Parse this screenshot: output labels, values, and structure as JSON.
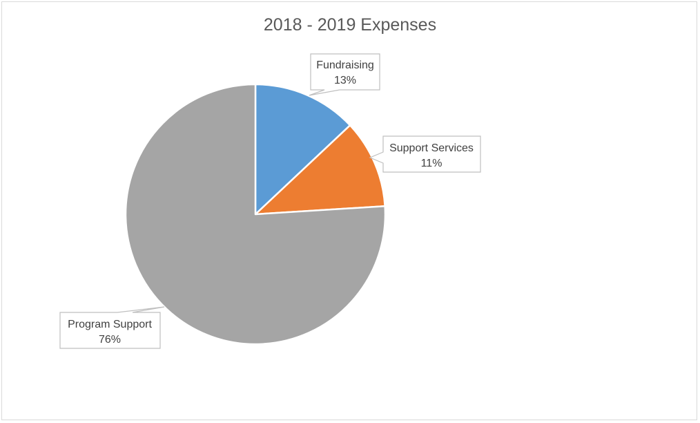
{
  "chart_data": {
    "type": "pie",
    "title": "2018 - 2019 Expenses",
    "slices": [
      {
        "label": "Fundraising",
        "value": 13,
        "display": "13%",
        "color": "#5b9bd5"
      },
      {
        "label": "Support Services",
        "value": 11,
        "display": "11%",
        "color": "#ed7d31"
      },
      {
        "label": "Program Support",
        "value": 76,
        "display": "76%",
        "color": "#a5a5a5"
      }
    ],
    "data_labels": "callout boxes showing category name and percentage",
    "legend": "none"
  }
}
